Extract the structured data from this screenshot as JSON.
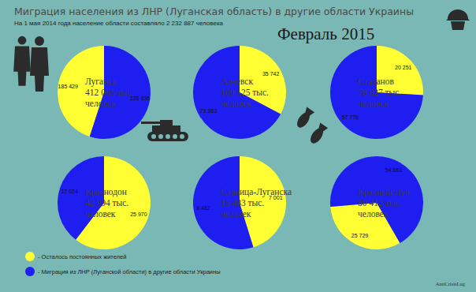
{
  "header": {
    "title": "Миграция населения из ЛНР (Луганская область) в другие области Украины",
    "subtitle": "На 1 мая 2014 года население области составляло 2 232 887 человека",
    "date": "Февраль 2015"
  },
  "legend": {
    "entries": [
      {
        "label": "- Осталось постоянных жителей",
        "color": "#ffff33"
      },
      {
        "label": "- Миграция из ЛНР (Луганской области) в другие области Украины",
        "color": "#1e1ef0"
      }
    ]
  },
  "footer": "AntiCrisisLug",
  "chart_data": [
    {
      "type": "pie",
      "title": "Луганск",
      "annotation": "412 065 тыс. человек",
      "values": [
        185429,
        226636
      ],
      "value_labels": [
        "185 429",
        "226 636"
      ],
      "colors": [
        "#ffff33",
        "#1e1ef0"
      ],
      "data_labels": true
    },
    {
      "type": "pie",
      "title": "Алчевск",
      "annotation": "109 125 тыс. человек",
      "values": [
        35742,
        73383
      ],
      "value_labels": [
        "35 742",
        "73 383"
      ],
      "colors": [
        "#ffff33",
        "#1e1ef0"
      ],
      "data_labels": true
    },
    {
      "type": "pie",
      "title": "Стаханов",
      "annotation": "78 027 тыс. человек",
      "values": [
        20251,
        57776
      ],
      "value_labels": [
        "20 251",
        "57 776"
      ],
      "colors": [
        "#ffff33",
        "#1e1ef0"
      ],
      "data_labels": true
    },
    {
      "type": "pie",
      "title": "Краснодон",
      "annotation": "42 994 тыс. человек",
      "values": [
        25970,
        17024
      ],
      "value_labels": [
        "25 970",
        "17 024"
      ],
      "colors": [
        "#ffff33",
        "#1e1ef0"
      ],
      "data_labels": true
    },
    {
      "type": "pie",
      "title": "Станица-Луганска",
      "annotation": "15 483 тыс. человек",
      "values": [
        7001,
        8482
      ],
      "value_labels": [
        "7 001",
        "8 482"
      ],
      "colors": [
        "#ffff33",
        "#1e1ef0"
      ],
      "data_labels": true
    },
    {
      "type": "pie",
      "title": "Красный Луч",
      "annotation": "80 412 тыс. человек",
      "values": [
        25729,
        54683
      ],
      "value_labels": [
        "25 729",
        "54 683"
      ],
      "colors": [
        "#ffff33",
        "#1e1ef0"
      ],
      "data_labels": true
    }
  ]
}
